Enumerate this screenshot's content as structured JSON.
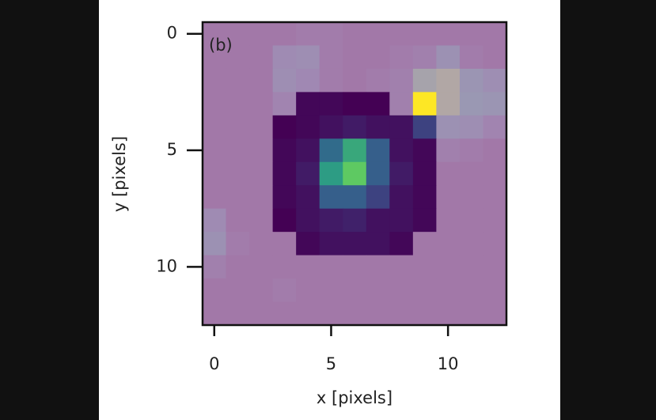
{
  "chart_data": {
    "type": "heatmap",
    "annotation": "(b)",
    "x_label": "x [pixels]",
    "y_label": "y [pixels]",
    "xlim": [
      -0.5,
      12.5
    ],
    "ylim": [
      12.5,
      -0.5
    ],
    "xticks": [
      0,
      5,
      10
    ],
    "yticks": [
      0,
      5,
      10
    ],
    "colormap": "viridis",
    "overlay_color": "#c29ac0",
    "z": [
      [
        0.05,
        0.05,
        0.05,
        0.05,
        0.1,
        0.1,
        0.05,
        0.05,
        0.05,
        0.05,
        0.05,
        0.05,
        0.05
      ],
      [
        0.05,
        0.05,
        0.05,
        0.3,
        0.35,
        0.1,
        0.05,
        0.05,
        0.1,
        0.15,
        0.4,
        0.1,
        0.05
      ],
      [
        0.05,
        0.05,
        0.05,
        0.35,
        0.25,
        0.1,
        0.05,
        0.1,
        0.15,
        0.7,
        0.8,
        0.45,
        0.35
      ],
      [
        0.05,
        0.05,
        0.05,
        0.2,
        0.02,
        0.02,
        0.0,
        0.0,
        0.15,
        1.0,
        0.8,
        0.5,
        0.45
      ],
      [
        0.05,
        0.05,
        0.05,
        0.0,
        0.02,
        0.05,
        0.08,
        0.05,
        0.05,
        0.2,
        0.4,
        0.35,
        0.2
      ],
      [
        0.05,
        0.05,
        0.05,
        0.02,
        0.05,
        0.35,
        0.6,
        0.3,
        0.05,
        0.02,
        0.15,
        0.1,
        0.05
      ],
      [
        0.05,
        0.05,
        0.05,
        0.02,
        0.08,
        0.55,
        0.75,
        0.3,
        0.08,
        0.02,
        0.05,
        0.05,
        0.05
      ],
      [
        0.05,
        0.05,
        0.05,
        0.02,
        0.05,
        0.3,
        0.3,
        0.2,
        0.05,
        0.02,
        0.05,
        0.05,
        0.05
      ],
      [
        0.3,
        0.05,
        0.05,
        0.0,
        0.05,
        0.08,
        0.1,
        0.05,
        0.05,
        0.02,
        0.05,
        0.05,
        0.05
      ],
      [
        0.4,
        0.1,
        0.05,
        0.05,
        0.02,
        0.05,
        0.05,
        0.05,
        0.02,
        0.05,
        0.05,
        0.05,
        0.05
      ],
      [
        0.15,
        0.05,
        0.05,
        0.05,
        0.05,
        0.05,
        0.05,
        0.05,
        0.05,
        0.05,
        0.05,
        0.05,
        0.05
      ],
      [
        0.05,
        0.05,
        0.05,
        0.1,
        0.05,
        0.05,
        0.05,
        0.05,
        0.05,
        0.05,
        0.05,
        0.05,
        0.05
      ],
      [
        0.05,
        0.05,
        0.05,
        0.05,
        0.05,
        0.05,
        0.05,
        0.05,
        0.05,
        0.05,
        0.05,
        0.05,
        0.05
      ]
    ],
    "aperture": [
      [
        false,
        false,
        false,
        false,
        false,
        false,
        false,
        false,
        false,
        false,
        false,
        false,
        false
      ],
      [
        false,
        false,
        false,
        false,
        false,
        false,
        false,
        false,
        false,
        false,
        false,
        false,
        false
      ],
      [
        false,
        false,
        false,
        false,
        false,
        false,
        false,
        false,
        false,
        false,
        false,
        false,
        false
      ],
      [
        false,
        false,
        false,
        false,
        true,
        true,
        true,
        true,
        false,
        true,
        false,
        false,
        false
      ],
      [
        false,
        false,
        false,
        true,
        true,
        true,
        true,
        true,
        true,
        true,
        false,
        false,
        false
      ],
      [
        false,
        false,
        false,
        true,
        true,
        true,
        true,
        true,
        true,
        true,
        false,
        false,
        false
      ],
      [
        false,
        false,
        false,
        true,
        true,
        true,
        true,
        true,
        true,
        true,
        false,
        false,
        false
      ],
      [
        false,
        false,
        false,
        true,
        true,
        true,
        true,
        true,
        true,
        true,
        false,
        false,
        false
      ],
      [
        false,
        false,
        false,
        true,
        true,
        true,
        true,
        true,
        true,
        true,
        false,
        false,
        false
      ],
      [
        false,
        false,
        false,
        false,
        true,
        true,
        true,
        true,
        true,
        false,
        false,
        false,
        false
      ],
      [
        false,
        false,
        false,
        false,
        false,
        false,
        false,
        false,
        false,
        false,
        false,
        false,
        false
      ],
      [
        false,
        false,
        false,
        false,
        false,
        false,
        false,
        false,
        false,
        false,
        false,
        false,
        false
      ],
      [
        false,
        false,
        false,
        false,
        false,
        false,
        false,
        false,
        false,
        false,
        false,
        false,
        false
      ]
    ]
  }
}
